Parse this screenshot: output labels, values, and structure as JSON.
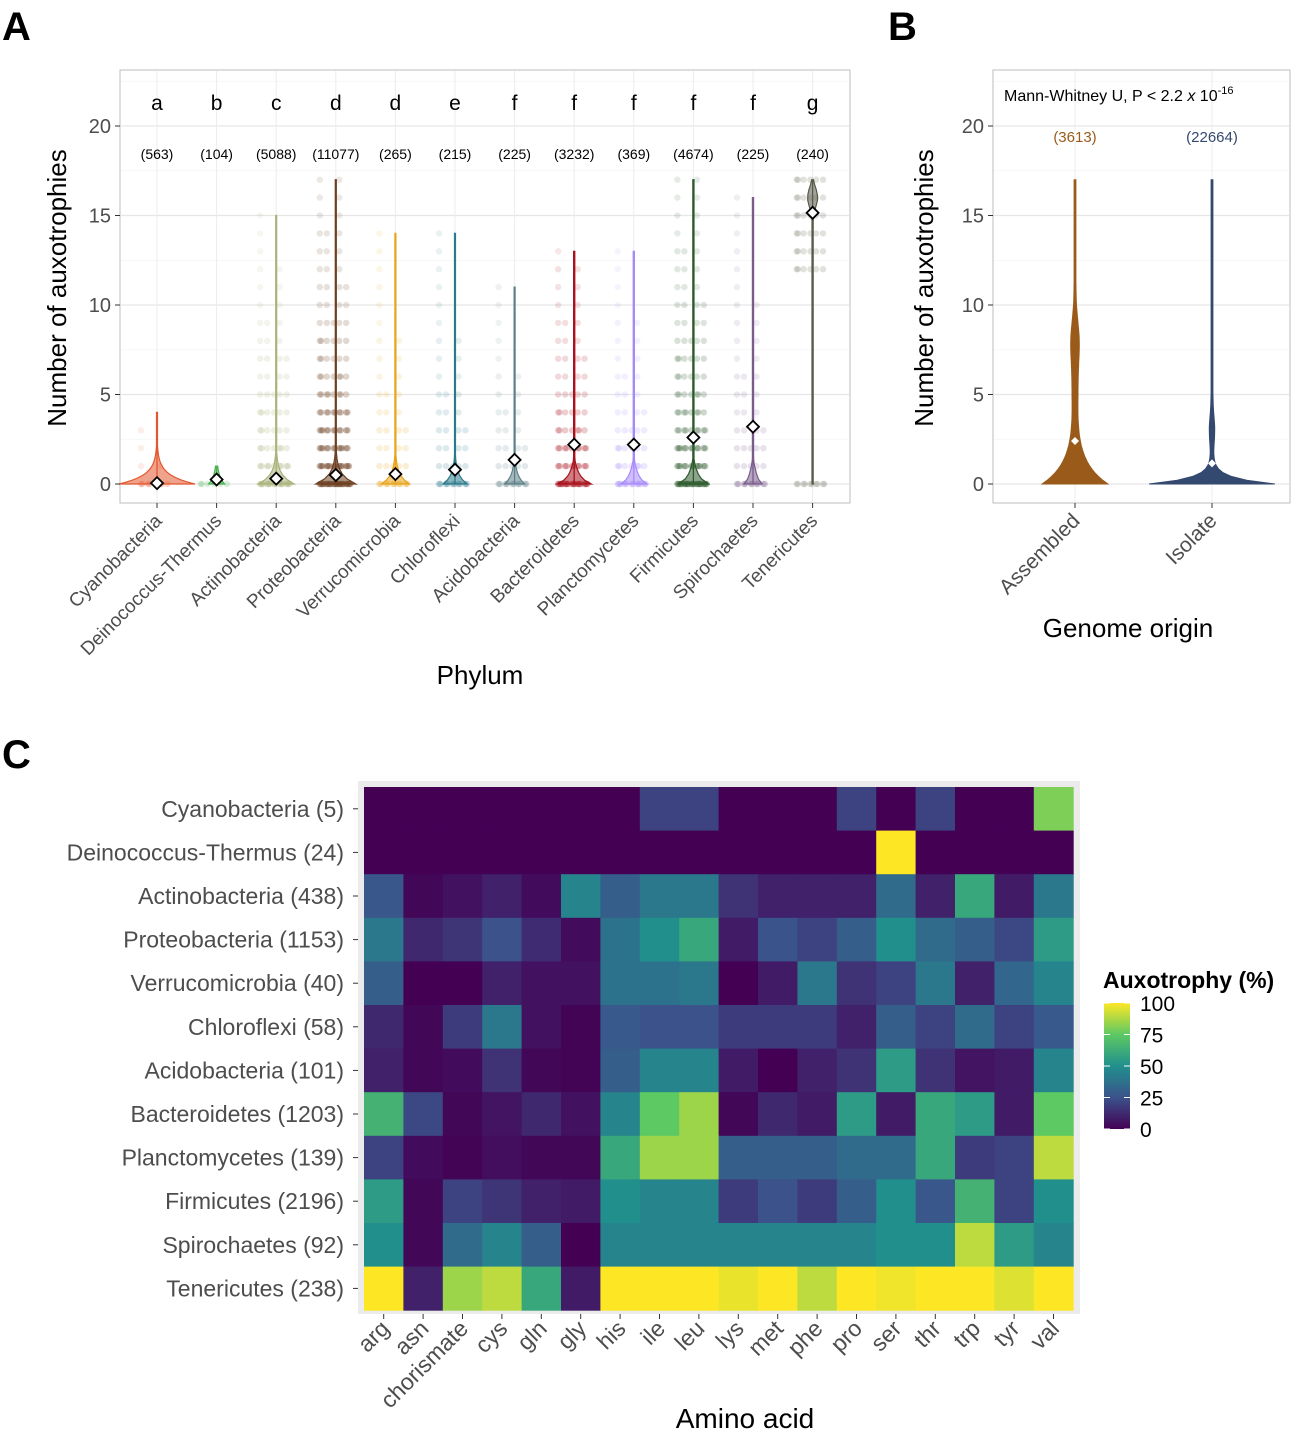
{
  "panels": {
    "A": "A",
    "B": "B",
    "C": "C"
  },
  "chart_data": [
    {
      "panel": "A",
      "type": "violin",
      "xlabel": "Phylum",
      "ylabel": "Number of auxotrophies",
      "ylim": [
        -1.2,
        23.5
      ],
      "yticks": [
        0,
        5,
        10,
        15,
        20
      ],
      "grid": true,
      "categories": [
        "Cyanobacteria",
        "Deinococcus-Thermus",
        "Actinobacteria",
        "Proteobacteria",
        "Verrucomicrobia",
        "Chloroflexi",
        "Acidobacteria",
        "Bacteroidetes",
        "Planctomycetes",
        "Firmicutes",
        "Spirochaetes",
        "Tenericutes"
      ],
      "letters": [
        "a",
        "b",
        "c",
        "d",
        "d",
        "e",
        "f",
        "f",
        "f",
        "f",
        "f",
        "g"
      ],
      "counts": [
        "(563)",
        "(104)",
        "(5088)",
        "(11077)",
        "(265)",
        "(215)",
        "(225)",
        "(3232)",
        "(369)",
        "(4674)",
        "(225)",
        "(240)"
      ],
      "means": [
        0.05,
        0.25,
        0.3,
        0.5,
        0.55,
        0.8,
        1.35,
        2.2,
        2.2,
        2.6,
        3.2,
        15.15
      ],
      "max": [
        4,
        1,
        15,
        17,
        14,
        14,
        11,
        13,
        13,
        17,
        16,
        17
      ],
      "colors": [
        "#e4572e",
        "#4caf50",
        "#aab27a",
        "#6b3e1f",
        "#e8a317",
        "#2b7a8c",
        "#5d7f86",
        "#a8121c",
        "#a78bfa",
        "#2d5a2d",
        "#7a5c8c",
        "#5a5a4a"
      ]
    },
    {
      "panel": "B",
      "type": "violin",
      "xlabel": "Genome origin",
      "ylabel": "Number of auxotrophies",
      "ylim": [
        -1.2,
        23.5
      ],
      "yticks": [
        0,
        5,
        10,
        15,
        20
      ],
      "grid": true,
      "categories": [
        "Assembled",
        "Isolate"
      ],
      "counts": [
        "(3613)",
        "(22664)"
      ],
      "means": [
        2.4,
        1.15
      ],
      "max": [
        17,
        17
      ],
      "colors": [
        "#9a5b1a",
        "#34496f"
      ],
      "annotation": {
        "text": "Mann-Whitney U, P < 2.2 ",
        "italic": "x",
        "base": " 10",
        "exponent": "-16"
      }
    },
    {
      "panel": "C",
      "type": "heatmap",
      "xlabel": "Amino acid",
      "columns": [
        "arg",
        "asn",
        "chorismate",
        "cys",
        "gln",
        "gly",
        "his",
        "ile",
        "leu",
        "lys",
        "met",
        "phe",
        "pro",
        "ser",
        "thr",
        "trp",
        "tyr",
        "val"
      ],
      "rows": [
        "Cyanobacteria (5)",
        "Deinococcus-Thermus (24)",
        "Actinobacteria (438)",
        "Proteobacteria (1153)",
        "Verrucomicrobia (40)",
        "Chloroflexi (58)",
        "Acidobacteria (101)",
        "Bacteroidetes (1203)",
        "Planctomycetes (139)",
        "Firmicutes (2196)",
        "Spirochaetes (92)",
        "Tenericutes (238)"
      ],
      "values": [
        [
          0,
          0,
          0,
          0,
          0,
          0,
          0,
          20,
          20,
          0,
          0,
          0,
          20,
          0,
          20,
          0,
          0,
          80
        ],
        [
          0,
          0,
          0,
          0,
          0,
          0,
          0,
          0,
          0,
          0,
          0,
          0,
          0,
          100,
          0,
          0,
          0,
          0
        ],
        [
          27,
          2,
          5,
          10,
          3,
          45,
          30,
          40,
          40,
          15,
          10,
          10,
          10,
          35,
          10,
          60,
          8,
          40
        ],
        [
          40,
          12,
          16,
          25,
          13,
          3,
          38,
          50,
          60,
          8,
          26,
          20,
          30,
          50,
          35,
          30,
          22,
          55
        ],
        [
          30,
          0,
          0,
          10,
          5,
          5,
          38,
          38,
          40,
          0,
          8,
          40,
          15,
          20,
          40,
          10,
          33,
          45
        ],
        [
          12,
          2,
          18,
          40,
          5,
          1,
          28,
          25,
          25,
          18,
          18,
          18,
          10,
          30,
          20,
          35,
          20,
          28
        ],
        [
          10,
          2,
          3,
          15,
          2,
          1,
          30,
          45,
          45,
          8,
          0,
          10,
          15,
          55,
          15,
          6,
          8,
          45
        ],
        [
          65,
          22,
          2,
          6,
          12,
          5,
          45,
          75,
          85,
          2,
          12,
          8,
          55,
          8,
          60,
          55,
          8,
          75
        ],
        [
          20,
          3,
          1,
          4,
          2,
          2,
          60,
          85,
          85,
          30,
          30,
          30,
          35,
          35,
          60,
          18,
          20,
          90
        ],
        [
          55,
          2,
          20,
          16,
          10,
          8,
          50,
          45,
          45,
          18,
          25,
          18,
          30,
          50,
          27,
          65,
          20,
          50
        ],
        [
          50,
          2,
          35,
          45,
          30,
          0,
          45,
          45,
          45,
          45,
          45,
          45,
          45,
          50,
          50,
          90,
          55,
          45
        ],
        [
          100,
          10,
          85,
          90,
          60,
          8,
          100,
          100,
          100,
          97,
          100,
          90,
          100,
          98,
          100,
          100,
          95,
          100
        ]
      ],
      "colorbar": {
        "title": "Auxotrophy (%)",
        "ticks": [
          100,
          75,
          50,
          25,
          0
        ]
      }
    }
  ]
}
